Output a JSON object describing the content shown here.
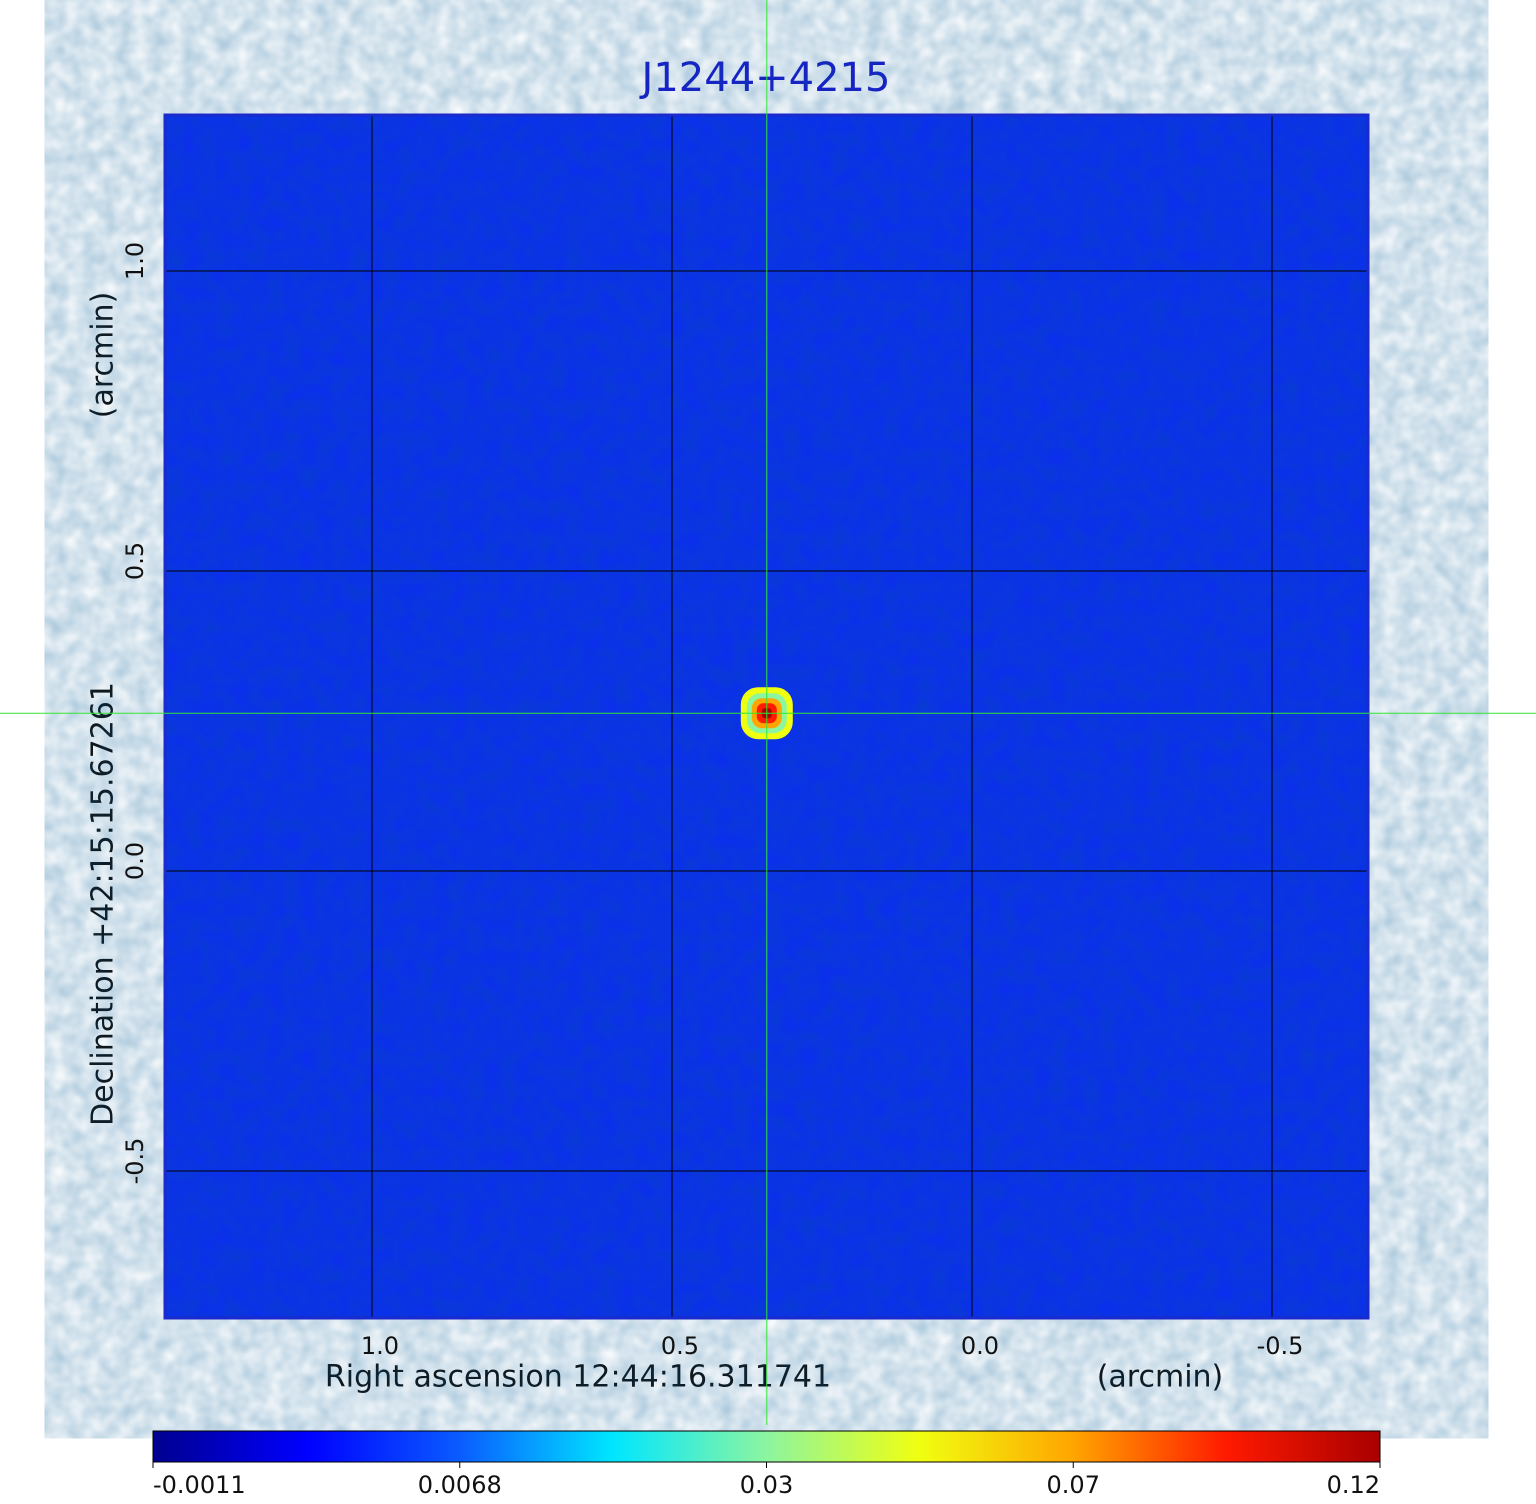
{
  "chart_data": {
    "type": "image",
    "title": "J1244+4215",
    "x_label": "Right ascension  12:44:16.311741",
    "x_unit": "(arcmin)",
    "y_label": "Declination  +42:15:15.67261",
    "y_unit": "(arcmin)",
    "xlim": [
      1.345,
      -0.66
    ],
    "ylim": [
      -0.745,
      1.26
    ],
    "xticks": [
      {
        "value": 1,
        "label": "1.0"
      },
      0.5,
      {
        "value": 0,
        "label": "0.0"
      },
      -0.5
    ],
    "yticks": [
      -0.5,
      {
        "value": 0,
        "label": "0.0"
      },
      0.5,
      {
        "value": 1,
        "label": "1.0"
      }
    ],
    "grid": true,
    "source": {
      "x": 0.342,
      "y": 0.263,
      "peak": 0.12
    },
    "colorbar_ticks": [
      -0.0011,
      0.0068,
      0.03,
      0.07,
      0.12
    ],
    "colormap": [
      "#00008f",
      "#0000ff",
      "#0a5cff",
      "#00e6ff",
      "#8cf5a0",
      "#f0ff10",
      "#ffa500",
      "#ff1a00",
      "#a80000"
    ],
    "background_color": "#0c2cf2",
    "crosshair_color": "#33e633"
  }
}
